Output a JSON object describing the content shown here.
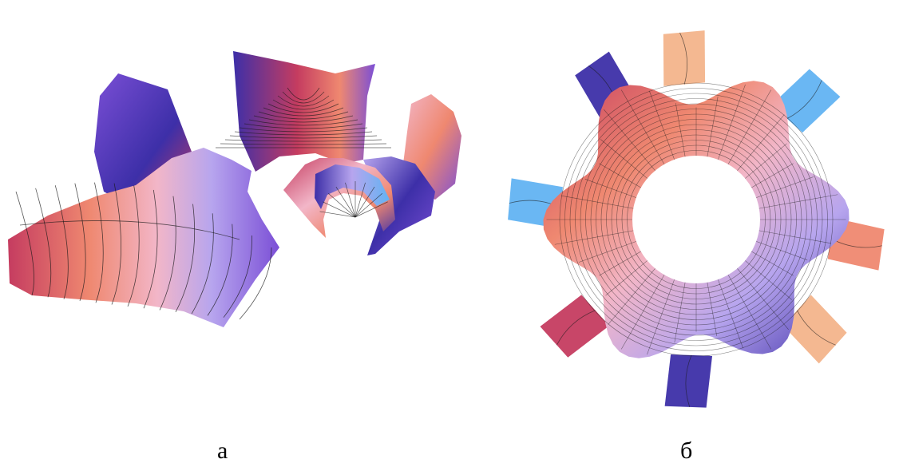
{
  "panels": [
    {
      "label": "а",
      "surface": "helicoid-surface-sections"
    },
    {
      "label": "б",
      "surface": "six-fold-surface-with-hole"
    }
  ],
  "colors": {
    "crimson": "#c53c60",
    "salmon": "#ef8870",
    "pink": "#f2b6c8",
    "white": "#fbf5fb",
    "lavender": "#b7a5ee",
    "violet": "#7b4fd6",
    "indigo": "#3d2fa8",
    "sky": "#62b3f2",
    "peach": "#f3b48b",
    "mesh": "#1a1a1a"
  }
}
